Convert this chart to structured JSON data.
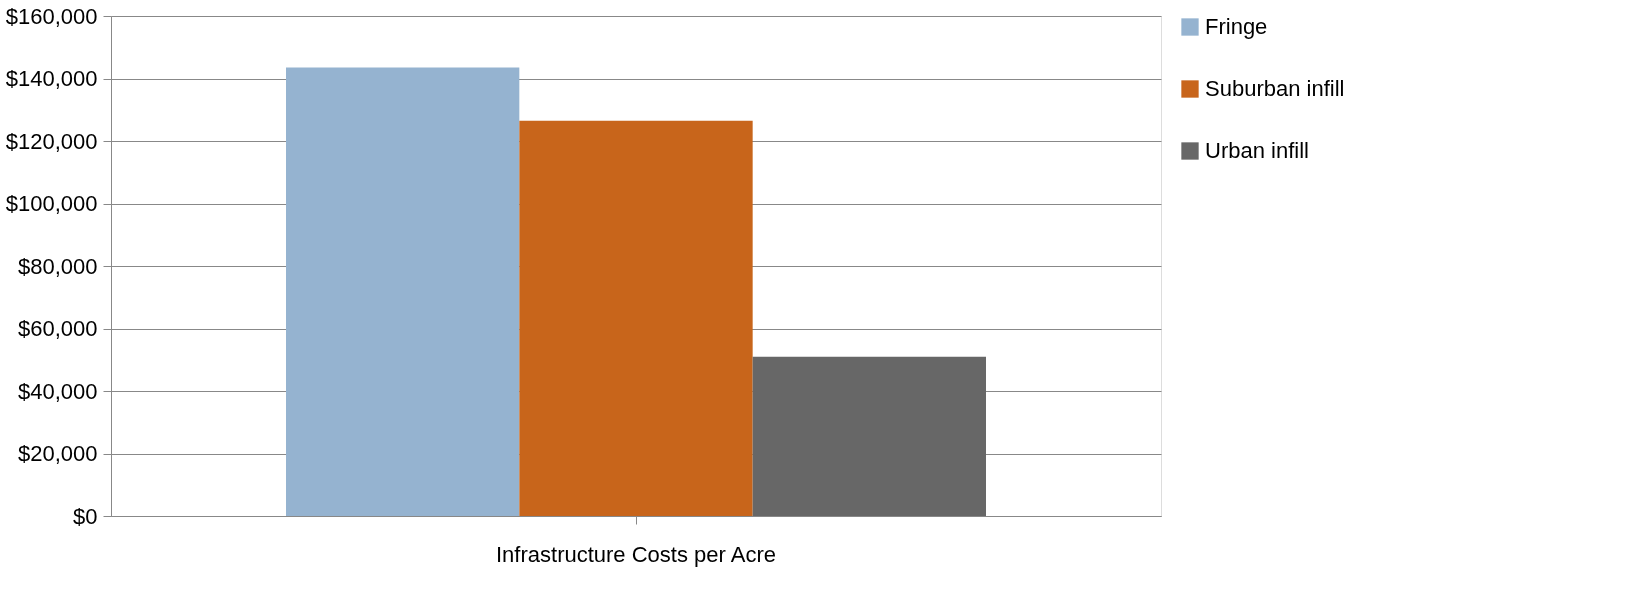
{
  "chart_data": {
    "type": "bar",
    "categories": [
      "Infrastructure Costs per Acre"
    ],
    "series": [
      {
        "name": "Fringe",
        "color": "#95b3d0",
        "values": [
          143500
        ]
      },
      {
        "name": "Suburban infill",
        "color": "#c8651b",
        "values": [
          126500
        ]
      },
      {
        "name": "Urban infill",
        "color": "#676767",
        "values": [
          51000
        ]
      }
    ],
    "ylim": [
      0,
      160000
    ],
    "yticks": [
      {
        "value": 0,
        "label": "$0"
      },
      {
        "value": 20000,
        "label": "$20,000"
      },
      {
        "value": 40000,
        "label": "$40,000"
      },
      {
        "value": 60000,
        "label": "$60,000"
      },
      {
        "value": 80000,
        "label": "$80,000"
      },
      {
        "value": 100000,
        "label": "$100,000"
      },
      {
        "value": 120000,
        "label": "$120,000"
      },
      {
        "value": 140000,
        "label": "$140,000"
      },
      {
        "value": 160000,
        "label": "$160,000"
      }
    ],
    "grid": "y",
    "legend": "right"
  }
}
